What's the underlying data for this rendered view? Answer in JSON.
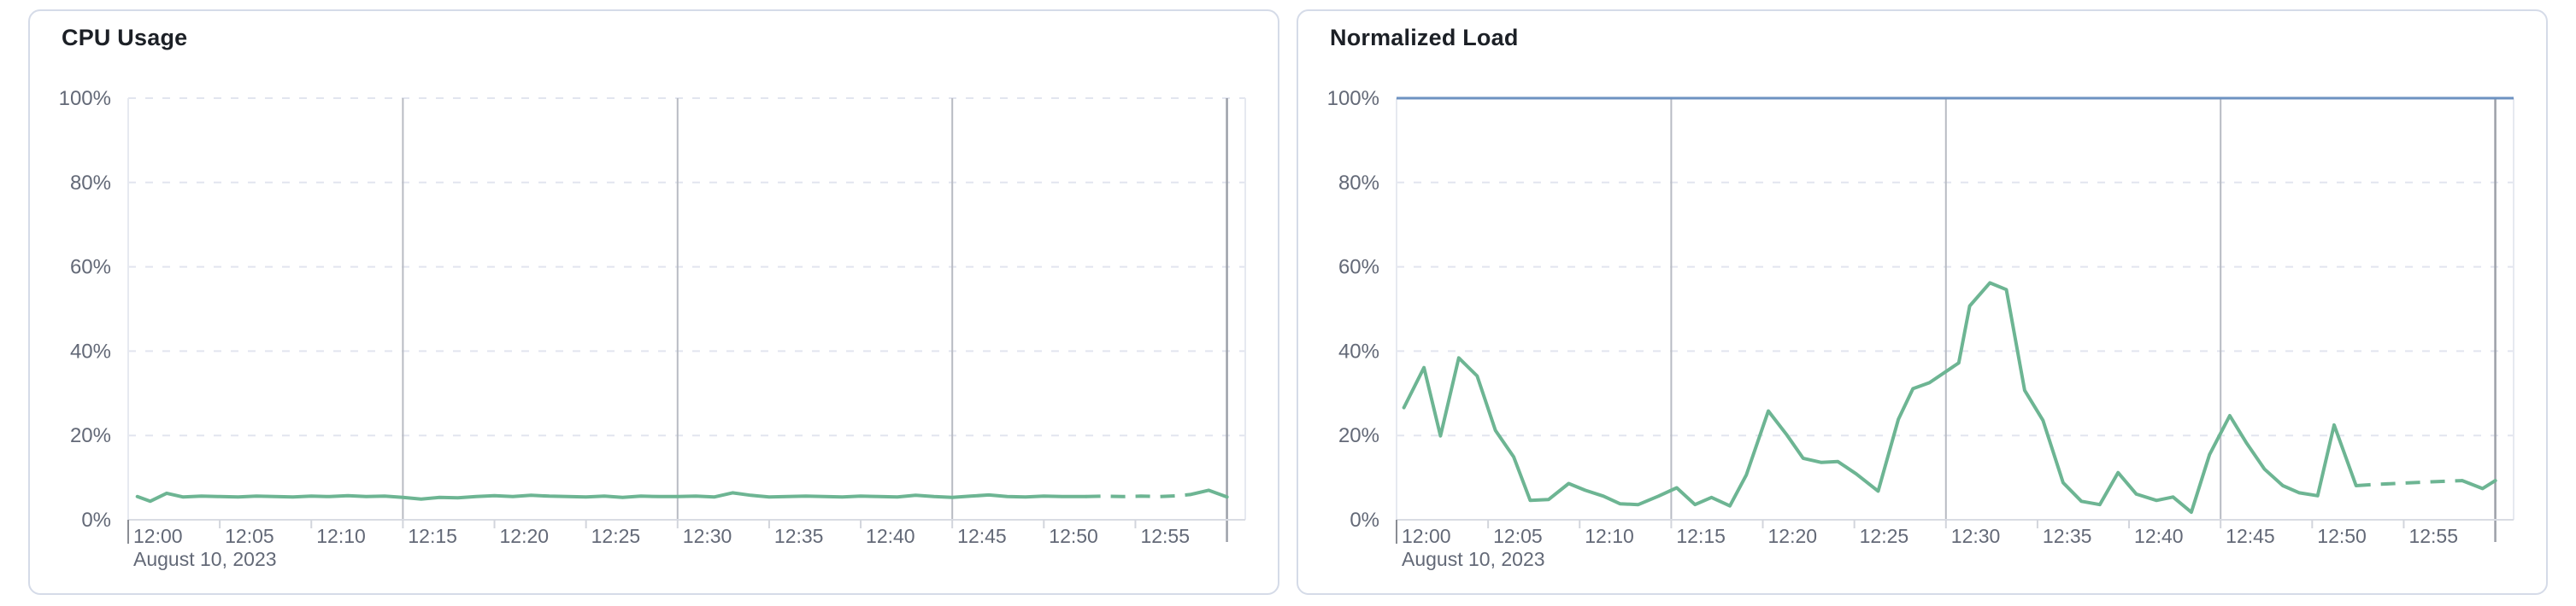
{
  "colors": {
    "series_green": "#6db593",
    "limit_blue": "#6d92c1",
    "grid_dashed": "#e2e5ef",
    "grid_quarter": "#b8bbc3",
    "grid_now": "#9ca0a9",
    "axis_line": "#d9dce3",
    "tick_minor": "#d2d5dc",
    "tick_origin": "#8a8d94",
    "plot_border": "#e6e9f0",
    "label_text": "#636977",
    "title_text": "#1c2026",
    "panel_border": "#d5dbe8"
  },
  "chart_data": [
    {
      "type": "line",
      "title": "CPU Usage",
      "xlabel": "",
      "ylabel": "",
      "x_axis_date_label": "August 10, 2023",
      "ylim": [
        0,
        100
      ],
      "x_range_minutes": [
        0,
        61
      ],
      "grid": {
        "horizontal": "dashed",
        "quarter_hour_lines": [
          15,
          30,
          45
        ],
        "now_line_minute": 60,
        "legend": "none"
      },
      "y_ticks": [
        {
          "value": 0,
          "label": "0%"
        },
        {
          "value": 20,
          "label": "20%"
        },
        {
          "value": 40,
          "label": "40%"
        },
        {
          "value": 60,
          "label": "60%"
        },
        {
          "value": 80,
          "label": "80%"
        },
        {
          "value": 100,
          "label": "100%"
        }
      ],
      "x_ticks": [
        {
          "minute": 0,
          "label": "12:00"
        },
        {
          "minute": 5,
          "label": "12:05"
        },
        {
          "minute": 10,
          "label": "12:10"
        },
        {
          "minute": 15,
          "label": "12:15"
        },
        {
          "minute": 20,
          "label": "12:20"
        },
        {
          "minute": 25,
          "label": "12:25"
        },
        {
          "minute": 30,
          "label": "12:30"
        },
        {
          "minute": 35,
          "label": "12:35"
        },
        {
          "minute": 40,
          "label": "12:40"
        },
        {
          "minute": 45,
          "label": "12:45"
        },
        {
          "minute": 50,
          "label": "12:50"
        },
        {
          "minute": 55,
          "label": "12:55"
        }
      ],
      "limit_line": null,
      "series": [
        {
          "name": "cpu-usage",
          "color": "#6db593",
          "segments": [
            {
              "style": "solid",
              "points": [
                [
                  0.5,
                  5.5
                ],
                [
                  1.2,
                  4.4
                ],
                [
                  2.1,
                  6.3
                ],
                [
                  3,
                  5.4
                ],
                [
                  4,
                  5.6
                ],
                [
                  5,
                  5.5
                ],
                [
                  6,
                  5.4
                ],
                [
                  7,
                  5.6
                ],
                [
                  8,
                  5.5
                ],
                [
                  9,
                  5.4
                ],
                [
                  10,
                  5.6
                ],
                [
                  11,
                  5.5
                ],
                [
                  12,
                  5.7
                ],
                [
                  13,
                  5.5
                ],
                [
                  14,
                  5.6
                ],
                [
                  15,
                  5.3
                ],
                [
                  16,
                  4.9
                ],
                [
                  17,
                  5.3
                ],
                [
                  18,
                  5.2
                ],
                [
                  19,
                  5.5
                ],
                [
                  20,
                  5.7
                ],
                [
                  21,
                  5.5
                ],
                [
                  22,
                  5.8
                ],
                [
                  23,
                  5.6
                ],
                [
                  24,
                  5.5
                ],
                [
                  25,
                  5.4
                ],
                [
                  26,
                  5.6
                ],
                [
                  27,
                  5.3
                ],
                [
                  28,
                  5.6
                ],
                [
                  29,
                  5.5
                ],
                [
                  30,
                  5.5
                ],
                [
                  31,
                  5.6
                ],
                [
                  32,
                  5.4
                ],
                [
                  33,
                  6.4
                ],
                [
                  34,
                  5.8
                ],
                [
                  35,
                  5.4
                ],
                [
                  36,
                  5.5
                ],
                [
                  37,
                  5.6
                ],
                [
                  38,
                  5.5
                ],
                [
                  39,
                  5.4
                ],
                [
                  40,
                  5.6
                ],
                [
                  41,
                  5.5
                ],
                [
                  42,
                  5.4
                ],
                [
                  43,
                  5.8
                ],
                [
                  44,
                  5.5
                ],
                [
                  45,
                  5.3
                ],
                [
                  46,
                  5.6
                ],
                [
                  47,
                  5.9
                ],
                [
                  48,
                  5.5
                ],
                [
                  49,
                  5.4
                ],
                [
                  50,
                  5.6
                ],
                [
                  51,
                  5.5
                ],
                [
                  52.3,
                  5.5
                ]
              ]
            },
            {
              "style": "dashed",
              "points": [
                [
                  52.3,
                  5.5
                ],
                [
                  53.3,
                  5.6
                ],
                [
                  54.3,
                  5.5
                ],
                [
                  55.3,
                  5.6
                ],
                [
                  56.3,
                  5.5
                ],
                [
                  57.3,
                  5.7
                ],
                [
                  58,
                  6.0
                ]
              ]
            },
            {
              "style": "solid",
              "points": [
                [
                  58,
                  6.0
                ],
                [
                  59,
                  7.0
                ],
                [
                  60,
                  5.4
                ]
              ]
            }
          ]
        }
      ]
    },
    {
      "type": "line",
      "title": "Normalized Load",
      "xlabel": "",
      "ylabel": "",
      "x_axis_date_label": "August 10, 2023",
      "ylim": [
        0,
        100
      ],
      "x_range_minutes": [
        0,
        61
      ],
      "grid": {
        "horizontal": "dashed",
        "quarter_hour_lines": [
          15,
          30,
          45
        ],
        "now_line_minute": 60,
        "legend": "none"
      },
      "y_ticks": [
        {
          "value": 0,
          "label": "0%"
        },
        {
          "value": 20,
          "label": "20%"
        },
        {
          "value": 40,
          "label": "40%"
        },
        {
          "value": 60,
          "label": "60%"
        },
        {
          "value": 80,
          "label": "80%"
        },
        {
          "value": 100,
          "label": "100%"
        }
      ],
      "x_ticks": [
        {
          "minute": 0,
          "label": "12:00"
        },
        {
          "minute": 5,
          "label": "12:05"
        },
        {
          "minute": 10,
          "label": "12:10"
        },
        {
          "minute": 15,
          "label": "12:15"
        },
        {
          "minute": 20,
          "label": "12:20"
        },
        {
          "minute": 25,
          "label": "12:25"
        },
        {
          "minute": 30,
          "label": "12:30"
        },
        {
          "minute": 35,
          "label": "12:35"
        },
        {
          "minute": 40,
          "label": "12:40"
        },
        {
          "minute": 45,
          "label": "12:45"
        },
        {
          "minute": 50,
          "label": "12:50"
        },
        {
          "minute": 55,
          "label": "12:55"
        }
      ],
      "limit_line": {
        "value": 100,
        "color": "#6d92c1"
      },
      "series": [
        {
          "name": "normalized-load",
          "color": "#6db593",
          "segments": [
            {
              "style": "solid",
              "points": [
                [
                  0.4,
                  26.6
                ],
                [
                  1.5,
                  36.1
                ],
                [
                  2.4,
                  19.9
                ],
                [
                  3.4,
                  38.4
                ],
                [
                  4.4,
                  34.1
                ],
                [
                  5.4,
                  21.2
                ],
                [
                  6.4,
                  14.9
                ],
                [
                  7.3,
                  4.6
                ],
                [
                  8.3,
                  4.8
                ],
                [
                  9.4,
                  8.6
                ],
                [
                  10.3,
                  7.0
                ],
                [
                  11.3,
                  5.6
                ],
                [
                  12.2,
                  3.8
                ],
                [
                  13.2,
                  3.6
                ],
                [
                  14.3,
                  5.6
                ],
                [
                  15.3,
                  7.6
                ],
                [
                  16.3,
                  3.6
                ],
                [
                  17.2,
                  5.3
                ],
                [
                  18.2,
                  3.3
                ],
                [
                  19.1,
                  10.6
                ],
                [
                  20.3,
                  25.8
                ],
                [
                  21.3,
                  20.2
                ],
                [
                  22.2,
                  14.6
                ],
                [
                  23.2,
                  13.6
                ],
                [
                  24.1,
                  13.8
                ],
                [
                  25.1,
                  10.9
                ],
                [
                  26.3,
                  6.8
                ],
                [
                  27.4,
                  23.8
                ],
                [
                  28.2,
                  31.1
                ],
                [
                  29.1,
                  32.5
                ],
                [
                  30.7,
                  37.2
                ],
                [
                  31.3,
                  50.7
                ],
                [
                  32.4,
                  56.2
                ],
                [
                  33.3,
                  54.6
                ],
                [
                  34.3,
                  30.7
                ],
                [
                  35.3,
                  23.6
                ],
                [
                  36.4,
                  8.8
                ],
                [
                  37.4,
                  4.4
                ],
                [
                  38.4,
                  3.6
                ],
                [
                  39.4,
                  11.2
                ],
                [
                  40.4,
                  6.1
                ],
                [
                  41.5,
                  4.6
                ],
                [
                  42.4,
                  5.4
                ],
                [
                  43.4,
                  1.8
                ],
                [
                  44.4,
                  15.5
                ],
                [
                  45.5,
                  24.7
                ],
                [
                  46.4,
                  18.3
                ],
                [
                  47.4,
                  12.0
                ],
                [
                  48.4,
                  8.1
                ],
                [
                  49.3,
                  6.4
                ],
                [
                  50.3,
                  5.7
                ],
                [
                  51.2,
                  22.5
                ],
                [
                  52.4,
                  8.1
                ]
              ]
            },
            {
              "style": "dashed",
              "points": [
                [
                  52.4,
                  8.1
                ],
                [
                  53.5,
                  8.4
                ],
                [
                  54.5,
                  8.6
                ],
                [
                  55.5,
                  8.8
                ],
                [
                  56.5,
                  9.0
                ],
                [
                  57.5,
                  9.2
                ],
                [
                  58.2,
                  9.3
                ]
              ]
            },
            {
              "style": "solid",
              "points": [
                [
                  58.2,
                  9.3
                ],
                [
                  59.3,
                  7.4
                ],
                [
                  60,
                  9.3
                ]
              ]
            }
          ]
        }
      ]
    }
  ]
}
